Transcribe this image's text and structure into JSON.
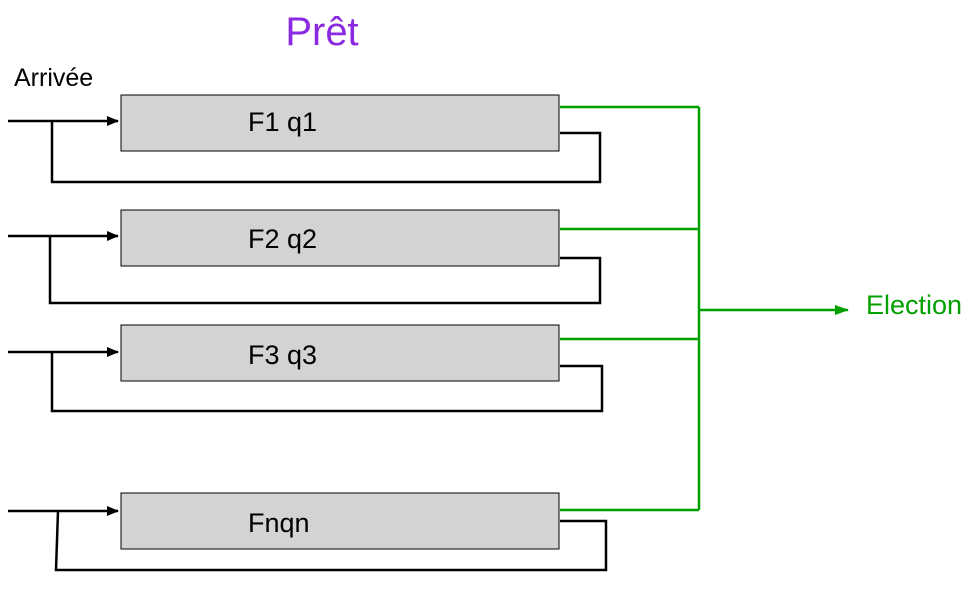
{
  "title": "Prêt",
  "arrival_label": "Arrivée",
  "output_label": "Election",
  "queues": [
    {
      "label": "F1 q1"
    },
    {
      "label": "F2 q2"
    },
    {
      "label": "F3 q3"
    },
    {
      "label": "Fnqn"
    }
  ],
  "colors": {
    "title": "#8a2be2",
    "box_fill": "#d3d3d3",
    "box_stroke": "#000000",
    "flow": "#000000",
    "election": "#00a000"
  }
}
